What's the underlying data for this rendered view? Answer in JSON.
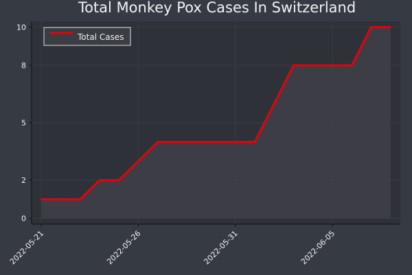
{
  "colors": {
    "page_background": "#353a43",
    "plot_background": "#2e3138",
    "text": "#f2f2f2",
    "axis": "#111111",
    "series_line": "#e8000b",
    "area_fill": "#3f4148"
  },
  "chart_data": {
    "type": "area",
    "title": "Total Monkey Pox Cases In Switzerland",
    "xlabel": "",
    "ylabel": "",
    "x": [
      "2022-05-21",
      "2022-05-22",
      "2022-05-23",
      "2022-05-24",
      "2022-05-25",
      "2022-05-26",
      "2022-05-27",
      "2022-05-28",
      "2022-05-29",
      "2022-05-30",
      "2022-05-31",
      "2022-06-01",
      "2022-06-02",
      "2022-06-03",
      "2022-06-04",
      "2022-06-05",
      "2022-06-06",
      "2022-06-07",
      "2022-06-08"
    ],
    "series": [
      {
        "name": "Total Cases",
        "values": [
          1,
          1,
          1,
          2,
          2,
          3,
          4,
          4,
          4,
          4,
          4,
          4,
          6,
          8,
          8,
          8,
          8,
          10,
          10
        ]
      }
    ],
    "xticks": [
      "2022-05-21",
      "2022-05-26",
      "2022-05-31",
      "2022-06-05"
    ],
    "yticks": [
      0,
      2,
      5,
      8,
      10
    ],
    "ytick_labels": [
      "0",
      "2",
      "5",
      "8",
      "10"
    ],
    "ylim": [
      -0.3,
      10.3
    ],
    "grid": true,
    "legend_position": "top-left"
  }
}
